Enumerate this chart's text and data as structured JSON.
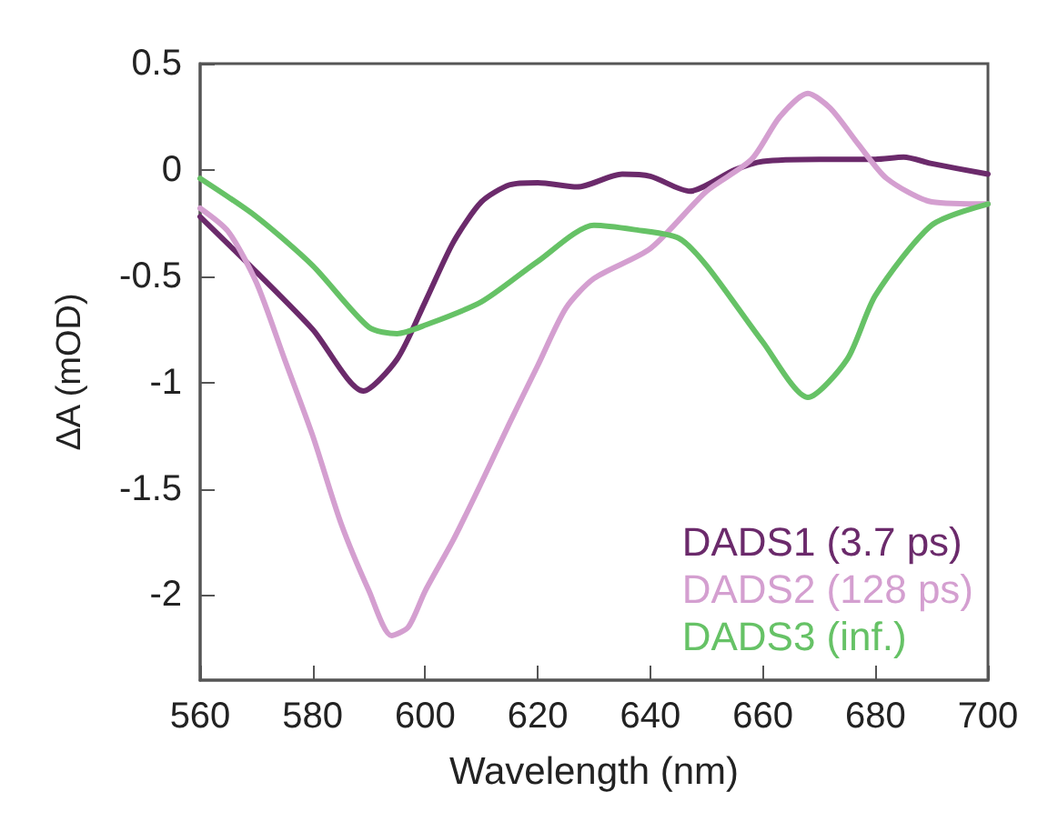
{
  "chart_data": {
    "type": "line",
    "xlabel": "Wavelength (nm)",
    "ylabel": "ΔA (mOD)",
    "xlim": [
      560,
      700
    ],
    "xticks": [
      560,
      580,
      600,
      620,
      640,
      660,
      680,
      700
    ],
    "ylim": [
      -2.4,
      0.5
    ],
    "yticks": [
      0.5,
      0,
      -0.5,
      -1,
      -1.5,
      -2
    ],
    "grid": false,
    "legend": "bottom right",
    "marker": "none",
    "line_style": "solid",
    "series": [
      {
        "name": "DADS1 (3.7 ps)",
        "color": "#6b2a6b",
        "x": [
          560,
          570,
          580,
          589,
          595,
          600,
          605,
          610,
          615,
          620,
          627,
          635,
          640,
          647,
          655,
          660,
          670,
          680,
          685,
          690,
          700
        ],
        "values": [
          -0.22,
          -0.48,
          -0.75,
          -1.04,
          -0.89,
          -0.62,
          -0.34,
          -0.15,
          -0.07,
          -0.06,
          -0.08,
          -0.02,
          -0.03,
          -0.1,
          0,
          0.04,
          0.05,
          0.05,
          0.06,
          0.03,
          -0.02
        ]
      },
      {
        "name": "DADS2 (128 ps)",
        "color": "#d49fd0",
        "x": [
          560,
          565,
          570,
          575,
          580,
          585,
          590,
          594,
          597,
          600,
          605,
          610,
          615,
          620,
          625,
          630,
          640,
          650,
          658,
          663,
          668,
          672,
          677,
          682,
          690,
          700
        ],
        "values": [
          -0.18,
          -0.29,
          -0.53,
          -0.89,
          -1.25,
          -1.66,
          -1.98,
          -2.19,
          -2.15,
          -1.98,
          -1.74,
          -1.47,
          -1.19,
          -0.92,
          -0.65,
          -0.51,
          -0.37,
          -0.1,
          0.05,
          0.25,
          0.36,
          0.29,
          0.12,
          -0.04,
          -0.15,
          -0.16
        ]
      },
      {
        "name": "DADS3 (inf.)",
        "color": "#66c266",
        "x": [
          560,
          570,
          580,
          590,
          595,
          600,
          610,
          620,
          630,
          637,
          645,
          650,
          660,
          668,
          675,
          680,
          690,
          700
        ],
        "values": [
          -0.04,
          -0.22,
          -0.45,
          -0.74,
          -0.77,
          -0.73,
          -0.62,
          -0.43,
          -0.26,
          -0.28,
          -0.32,
          -0.45,
          -0.81,
          -1.07,
          -0.89,
          -0.59,
          -0.26,
          -0.16
        ]
      }
    ]
  }
}
